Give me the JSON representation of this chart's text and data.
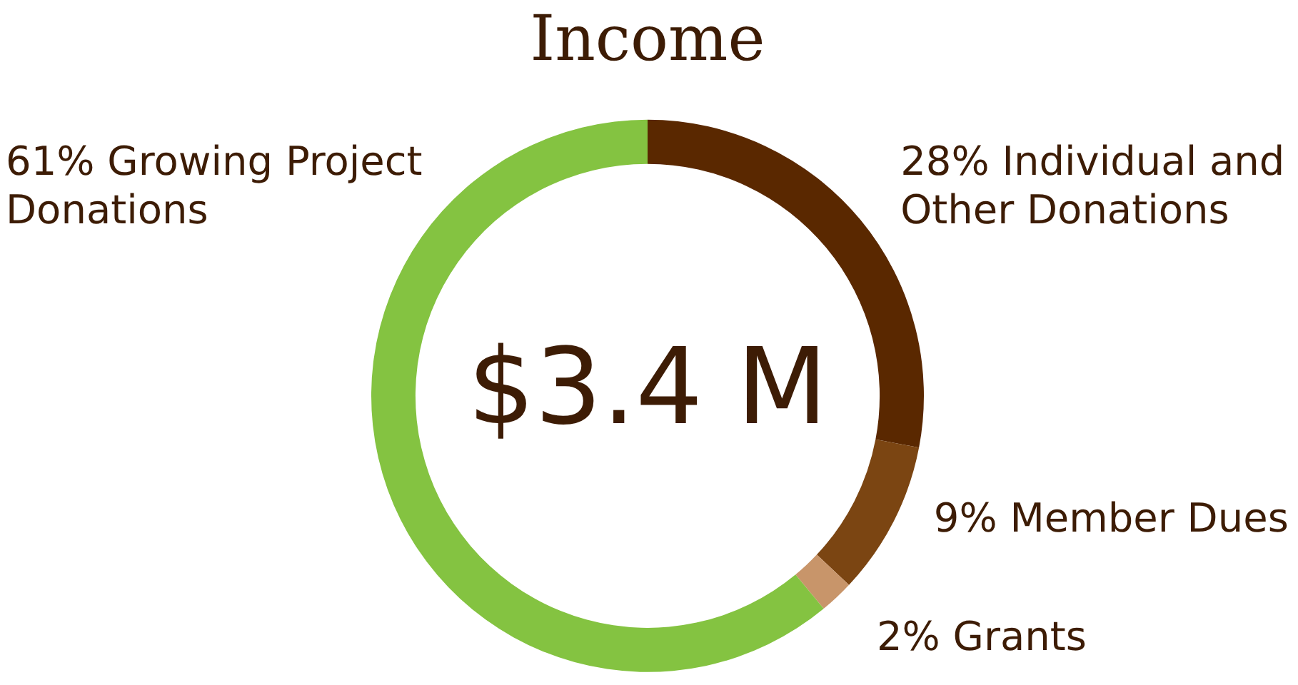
{
  "chart_data": {
    "type": "donut",
    "title": "Income",
    "categories": [
      "Individual and Other Donations",
      "Member Dues",
      "Grants",
      "Growing Project Donations"
    ],
    "values": [
      28,
      9,
      2,
      61
    ],
    "value_labels": [
      "28%",
      "9%",
      "2%",
      "61%"
    ],
    "colors": [
      "#5a2800",
      "#7b4512",
      "#c8956a",
      "#84c341"
    ],
    "annotations": [
      "$3.4 M"
    ],
    "legend": false
  }
}
